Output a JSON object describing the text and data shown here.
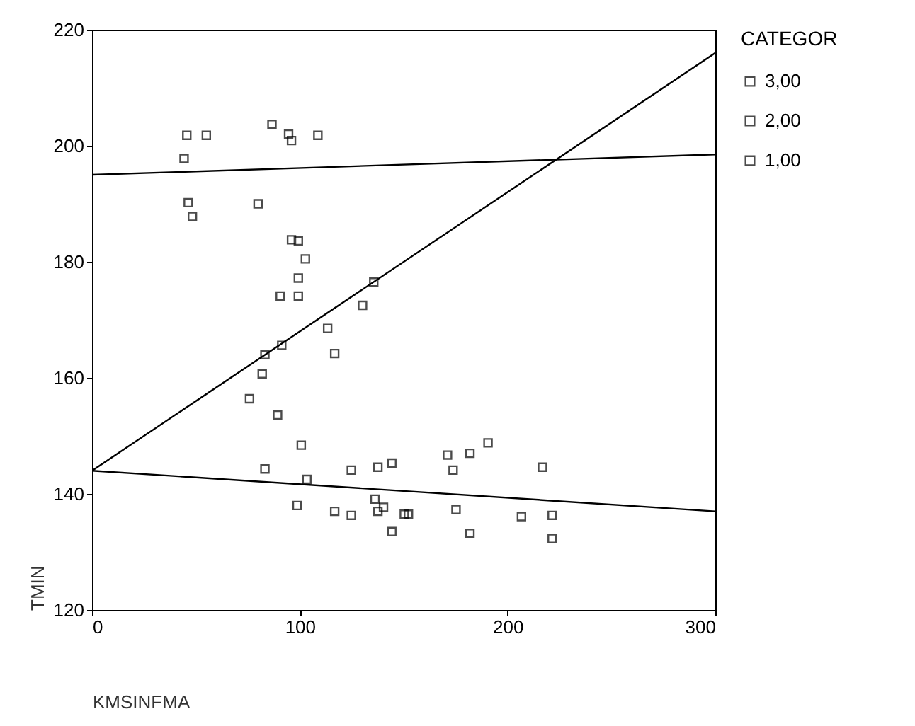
{
  "chart_data": {
    "type": "scatter",
    "xlabel": "KMSINFMA",
    "ylabel": "TMIN",
    "legend_title": "CATEGOR",
    "xlim": [
      0,
      300
    ],
    "xticks": [
      0,
      100,
      200,
      300
    ],
    "ylim": [
      120,
      220
    ],
    "yticks": [
      120,
      140,
      160,
      180,
      200,
      220
    ],
    "grid": false,
    "legend": "right",
    "series": [
      {
        "name": "3,00",
        "marker": "square",
        "color": "#000000",
        "x": [
          45.6,
          55,
          86.6,
          94.6,
          96,
          108.7,
          44.3,
          46.3,
          48.3,
          79.9
        ],
        "values": [
          201.8,
          201.8,
          203.7,
          202,
          200.9,
          201.8,
          197.8,
          190.2,
          187.8,
          190
        ]
      },
      {
        "name": "2,00",
        "marker": "square",
        "color": "#000000",
        "x": [
          96,
          99.3,
          102.7,
          99.3,
          90.6,
          99.3,
          135.6,
          130.2,
          113.4,
          116.8,
          91.3,
          83.2,
          81.9,
          75.8,
          89.3
        ],
        "values": [
          183.8,
          183.6,
          180.5,
          177.2,
          174.1,
          174.1,
          176.5,
          172.5,
          168.5,
          164.2,
          165.6,
          164,
          160.7,
          156.4,
          153.6
        ]
      },
      {
        "name": "1,00",
        "marker": "square",
        "color": "#000000",
        "x": [
          100.7,
          83.2,
          103.4,
          98.7,
          116.8,
          124.8,
          124.8,
          137.6,
          144.3,
          136.2,
          137.6,
          140.3,
          144.3,
          150.3,
          152.3,
          171.1,
          181.9,
          190.6,
          173.8,
          216.8,
          175.2,
          206.7,
          221.5,
          221.5,
          181.9
        ],
        "values": [
          148.4,
          144.3,
          142.5,
          138,
          137,
          136.3,
          144.1,
          144.6,
          145.3,
          139.1,
          137,
          137.7,
          133.5,
          136.5,
          136.5,
          146.7,
          147,
          148.8,
          144.1,
          144.6,
          137.3,
          136.1,
          136.3,
          132.3,
          133.2
        ]
      },
      {
        "type": "line",
        "marker": "none",
        "color": "#000000",
        "x": [
          0,
          300
        ],
        "values": [
          195,
          198.5
        ]
      },
      {
        "type": "line",
        "marker": "none",
        "color": "#000000",
        "x": [
          0,
          300
        ],
        "values": [
          144,
          216
        ]
      },
      {
        "type": "line",
        "marker": "none",
        "color": "#000000",
        "x": [
          0,
          300
        ],
        "values": [
          144,
          137
        ]
      }
    ]
  }
}
